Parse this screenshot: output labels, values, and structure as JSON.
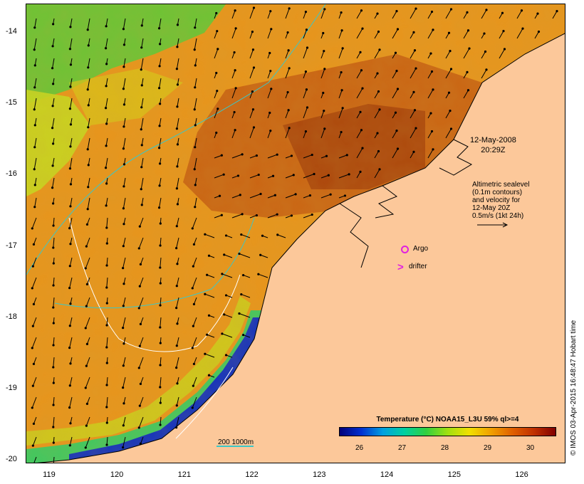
{
  "map": {
    "x_ticks": [
      "119",
      "120",
      "121",
      "122",
      "123",
      "124",
      "125",
      "126"
    ],
    "y_ticks": [
      "-14",
      "-15",
      "-16",
      "-17",
      "-18",
      "-19",
      "-20"
    ],
    "x_range": [
      118.65,
      126.65
    ],
    "y_range": [
      -20.05,
      -13.6
    ]
  },
  "annotations": {
    "date_line1": "12-May-2008",
    "date_line2": "20:29Z",
    "alti_line1": "Altimetric sealevel",
    "alti_line2": "(0.1m contours)",
    "alti_line3": "and velocity for",
    "alti_line4": "12-May 20Z",
    "alti_line5": "0.5m/s (1kt 24h)",
    "argo_label": "Argo",
    "drifter_label": "drifter",
    "contour_scale": "200  1000m"
  },
  "legend": {
    "title": "Temperature (°C) NOAA15_L3U 59% ql>=4",
    "ticks": [
      "26",
      "27",
      "28",
      "29",
      "30"
    ]
  },
  "credit": "© IMOS 03-Apr-2015 16:48:47 Hobart time",
  "colors": {
    "land": "#fcc89a",
    "warm": "#e08a18",
    "hot": "#b85010",
    "cool_green": "#60d040",
    "cool_blue": "#0030d0",
    "contour": "#3bc7c7",
    "marker": "#e020e0"
  }
}
